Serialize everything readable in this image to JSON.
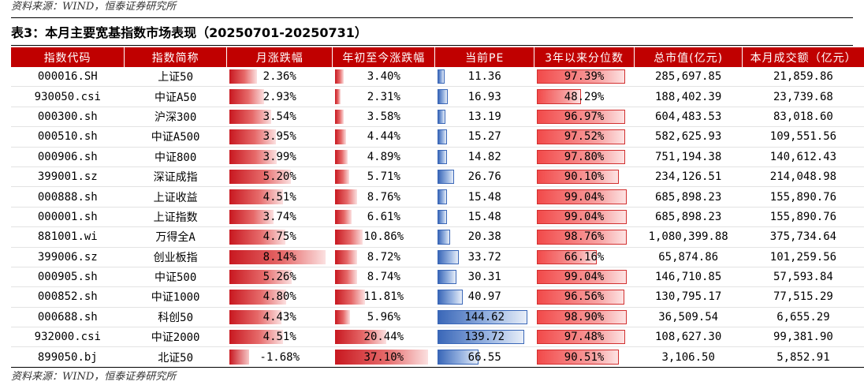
{
  "source_top": "资料来源：WIND，恒泰证券研究所",
  "title": "表3：本月主要宽基指数市场表现（20250701-20250731）",
  "source_bottom": "资料来源：WIND，恒泰证券研究所",
  "headers": [
    "指数代码",
    "指数简称",
    "月涨跌幅",
    "年初至今涨跌幅",
    "当前PE",
    "3年以来分位数",
    "总市值(亿元)",
    "本月成交额（亿元）"
  ],
  "rows": [
    {
      "code": "000016.SH",
      "name": "上证50",
      "month": "2.36%",
      "month_v": 2.36,
      "ytd": "3.40%",
      "ytd_v": 3.4,
      "pe": "11.36",
      "pe_v": 11.36,
      "pct": "97.39%",
      "pct_v": 97.39,
      "mcap": "285,697.85",
      "vol": "21,859.86"
    },
    {
      "code": "930050.csi",
      "name": "中证A50",
      "month": "2.93%",
      "month_v": 2.93,
      "ytd": "2.31%",
      "ytd_v": 2.31,
      "pe": "16.93",
      "pe_v": 16.93,
      "pct": "48.29%",
      "pct_v": 48.29,
      "mcap": "188,402.39",
      "vol": "23,739.68"
    },
    {
      "code": "000300.sh",
      "name": "沪深300",
      "month": "3.54%",
      "month_v": 3.54,
      "ytd": "3.58%",
      "ytd_v": 3.58,
      "pe": "13.19",
      "pe_v": 13.19,
      "pct": "96.97%",
      "pct_v": 96.97,
      "mcap": "604,483.53",
      "vol": "83,018.60"
    },
    {
      "code": "000510.sh",
      "name": "中证A500",
      "month": "3.95%",
      "month_v": 3.95,
      "ytd": "4.44%",
      "ytd_v": 4.44,
      "pe": "15.27",
      "pe_v": 15.27,
      "pct": "97.52%",
      "pct_v": 97.52,
      "mcap": "582,625.93",
      "vol": "109,551.56"
    },
    {
      "code": "000906.sh",
      "name": "中证800",
      "month": "3.99%",
      "month_v": 3.99,
      "ytd": "4.89%",
      "ytd_v": 4.89,
      "pe": "14.82",
      "pe_v": 14.82,
      "pct": "97.80%",
      "pct_v": 97.8,
      "mcap": "751,194.38",
      "vol": "140,612.43"
    },
    {
      "code": "399001.sz",
      "name": "深证成指",
      "month": "5.20%",
      "month_v": 5.2,
      "ytd": "5.71%",
      "ytd_v": 5.71,
      "pe": "26.76",
      "pe_v": 26.76,
      "pct": "90.10%",
      "pct_v": 90.1,
      "mcap": "234,126.51",
      "vol": "214,048.98"
    },
    {
      "code": "000888.sh",
      "name": "上证收益",
      "month": "4.51%",
      "month_v": 4.51,
      "ytd": "8.76%",
      "ytd_v": 8.76,
      "pe": "15.48",
      "pe_v": 15.48,
      "pct": "99.04%",
      "pct_v": 99.04,
      "mcap": "685,898.23",
      "vol": "155,890.76"
    },
    {
      "code": "000001.sh",
      "name": "上证指数",
      "month": "3.74%",
      "month_v": 3.74,
      "ytd": "6.61%",
      "ytd_v": 6.61,
      "pe": "15.48",
      "pe_v": 15.48,
      "pct": "99.04%",
      "pct_v": 99.04,
      "mcap": "685,898.23",
      "vol": "155,890.76"
    },
    {
      "code": "881001.wi",
      "name": "万得全A",
      "month": "4.75%",
      "month_v": 4.75,
      "ytd": "10.86%",
      "ytd_v": 10.86,
      "pe": "20.38",
      "pe_v": 20.38,
      "pct": "98.76%",
      "pct_v": 98.76,
      "mcap": "1,080,399.88",
      "vol": "375,734.64"
    },
    {
      "code": "399006.sz",
      "name": "创业板指",
      "month": "8.14%",
      "month_v": 8.14,
      "ytd": "8.72%",
      "ytd_v": 8.72,
      "pe": "33.72",
      "pe_v": 33.72,
      "pct": "66.16%",
      "pct_v": 66.16,
      "mcap": "65,874.86",
      "vol": "101,259.56"
    },
    {
      "code": "000905.sh",
      "name": "中证500",
      "month": "5.26%",
      "month_v": 5.26,
      "ytd": "8.74%",
      "ytd_v": 8.74,
      "pe": "30.31",
      "pe_v": 30.31,
      "pct": "99.04%",
      "pct_v": 99.04,
      "mcap": "146,710.85",
      "vol": "57,593.84"
    },
    {
      "code": "000852.sh",
      "name": "中证1000",
      "month": "4.80%",
      "month_v": 4.8,
      "ytd": "11.81%",
      "ytd_v": 11.81,
      "pe": "40.97",
      "pe_v": 40.97,
      "pct": "96.56%",
      "pct_v": 96.56,
      "mcap": "130,795.17",
      "vol": "77,515.29"
    },
    {
      "code": "000688.sh",
      "name": "科创50",
      "month": "4.43%",
      "month_v": 4.43,
      "ytd": "5.96%",
      "ytd_v": 5.96,
      "pe": "144.62",
      "pe_v": 144.62,
      "pct": "98.90%",
      "pct_v": 98.9,
      "mcap": "36,509.54",
      "vol": "6,655.29"
    },
    {
      "code": "932000.csi",
      "name": "中证2000",
      "month": "4.51%",
      "month_v": 4.51,
      "ytd": "20.44%",
      "ytd_v": 20.44,
      "pe": "139.72",
      "pe_v": 139.72,
      "pct": "97.48%",
      "pct_v": 97.48,
      "mcap": "108,627.30",
      "vol": "99,381.90"
    },
    {
      "code": "899050.bj",
      "name": "北证50",
      "month": "-1.68%",
      "month_v": -1.68,
      "ytd": "37.10%",
      "ytd_v": 37.1,
      "pe": "66.55",
      "pe_v": 66.55,
      "pct": "90.51%",
      "pct_v": 90.51,
      "mcap": "3,106.50",
      "vol": "5,852.91"
    }
  ]
}
